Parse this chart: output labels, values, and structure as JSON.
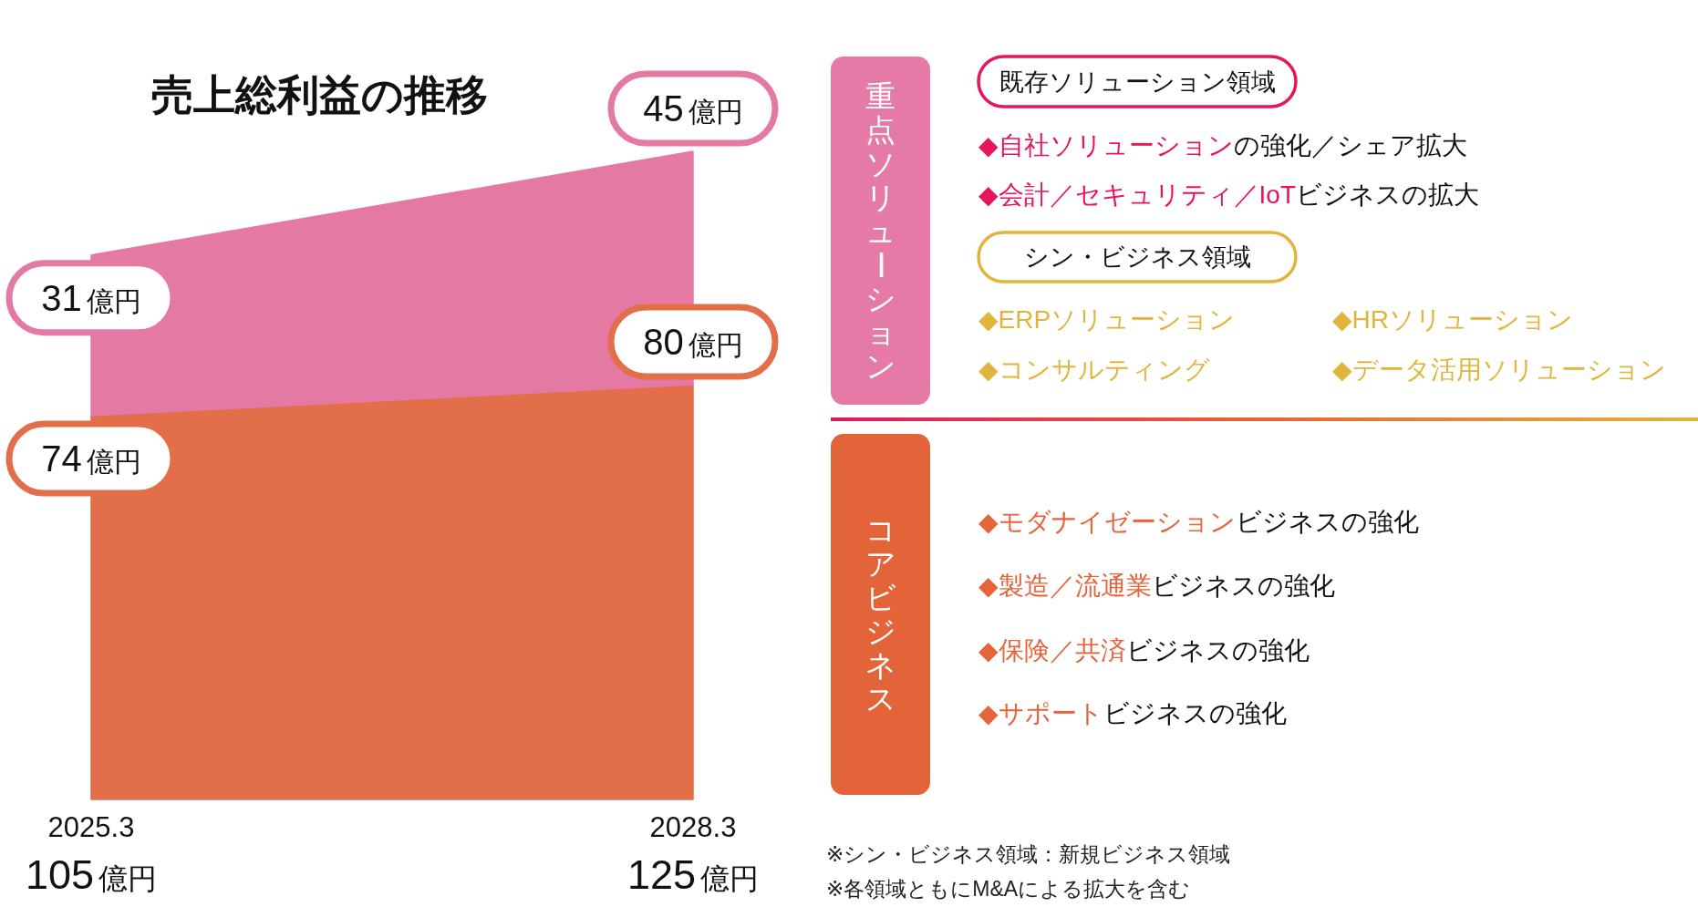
{
  "chart_data": [
    {
      "type": "area",
      "stacked": true,
      "title": "売上総利益の推移",
      "categories": [
        "2025.3",
        "2028.3"
      ],
      "series": [
        {
          "color": "#e26e4a",
          "values": [
            74,
            80
          ],
          "value_labels": [
            "74億円",
            "80億円"
          ]
        },
        {
          "color": "#e479a4",
          "values": [
            31,
            45
          ],
          "value_labels": [
            "31億円",
            "45億円"
          ]
        }
      ],
      "annotations": [
        "105億円",
        "125億円"
      ]
    },
    {
      "type": "other",
      "annotations": [
        "重点ソリューション",
        "既存ソリューション領域",
        "◆自社ソリューション",
        "の強化／シェア拡大",
        "◆会計／セキュリティ／IoT",
        "ビジネスの拡大",
        "シン・ビジネス領域",
        "◆ERPソリューション",
        "◆HRソリューション",
        "◆コンサルティング",
        "◆データ活用ソリューション",
        "コアビジネス",
        "◆モダナイゼーション",
        "ビジネスの強化",
        "◆製造／流通業",
        "ビジネスの強化",
        "◆保険／共済",
        "ビジネスの強化",
        "◆サポート",
        "ビジネスの強化",
        "※シン・ビジネス領域：新規ビジネス領域",
        "※各領域ともにM&Aによる拡大を含む"
      ]
    }
  ]
}
